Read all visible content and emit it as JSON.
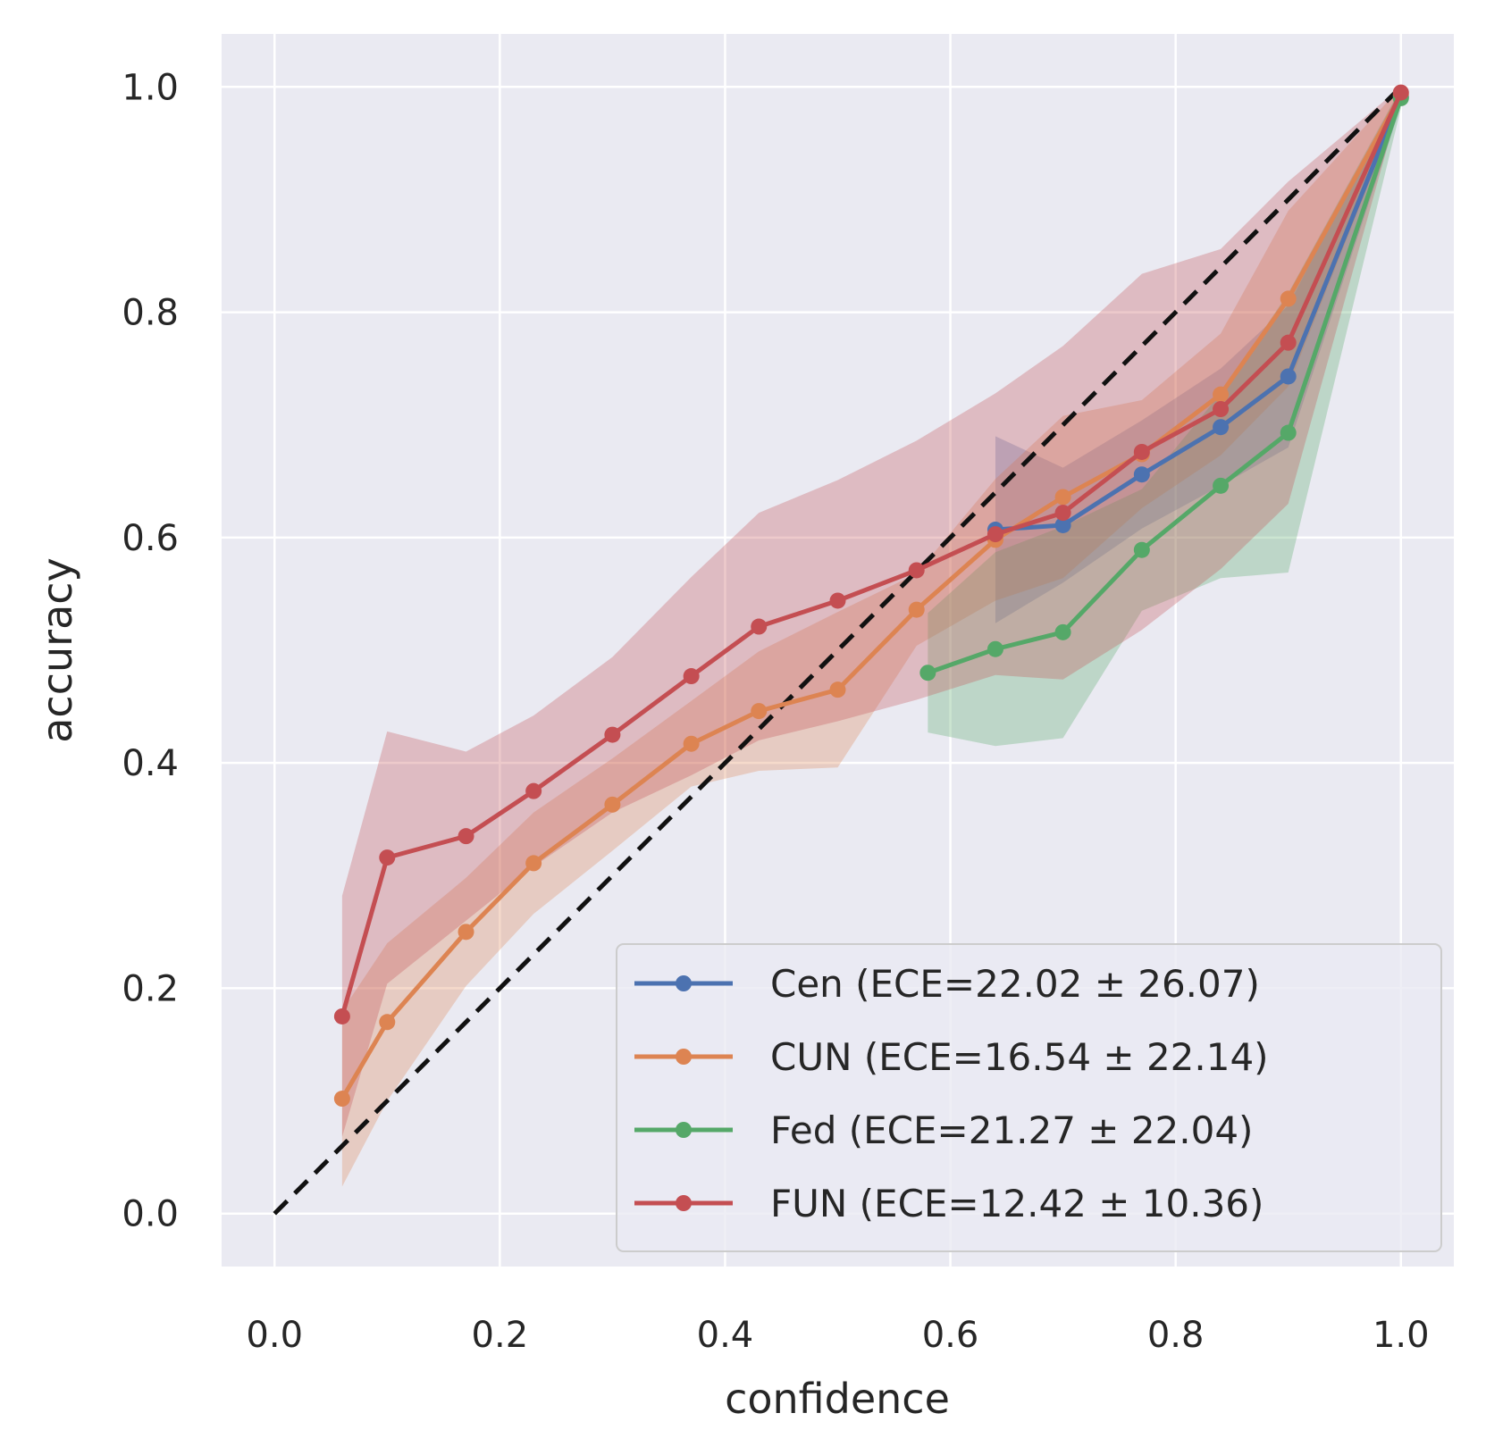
{
  "chart_data": {
    "type": "line",
    "xlabel": "confidence",
    "ylabel": "accuracy",
    "xlim": [
      -0.047,
      1.047
    ],
    "ylim": [
      -0.047,
      1.047
    ],
    "xticks": [
      "0.0",
      "0.2",
      "0.4",
      "0.6",
      "0.8",
      "1.0"
    ],
    "yticks": [
      "0.0",
      "0.2",
      "0.4",
      "0.6",
      "0.8",
      "1.0"
    ],
    "grid": true,
    "legend_position": "lower-right",
    "reference_line": {
      "from": [
        0,
        0
      ],
      "to": [
        1,
        1
      ],
      "style": "dashed",
      "color": "#111111"
    },
    "series": [
      {
        "name": "Cen (ECE=22.02 ± 26.07)",
        "color": "#4c72b0",
        "x": [
          0.64,
          0.7,
          0.77,
          0.84,
          0.9,
          1.0
        ],
        "y": [
          0.607,
          0.611,
          0.656,
          0.698,
          0.743,
          0.991
        ],
        "upper": [
          0.69,
          0.662,
          0.704,
          0.75,
          0.806,
          0.999
        ],
        "lower": [
          0.524,
          0.56,
          0.608,
          0.646,
          0.68,
          0.983
        ]
      },
      {
        "name": "CUN (ECE=16.54 ± 22.14)",
        "color": "#dd8452",
        "x": [
          0.06,
          0.1,
          0.17,
          0.23,
          0.3,
          0.37,
          0.43,
          0.5,
          0.57,
          0.64,
          0.7,
          0.77,
          0.84,
          0.9,
          1.0
        ],
        "y": [
          0.102,
          0.17,
          0.25,
          0.311,
          0.363,
          0.417,
          0.446,
          0.465,
          0.536,
          0.598,
          0.636,
          0.674,
          0.727,
          0.812,
          0.993
        ],
        "upper": [
          0.18,
          0.24,
          0.298,
          0.356,
          0.404,
          0.455,
          0.499,
          0.534,
          0.568,
          0.652,
          0.708,
          0.722,
          0.781,
          0.89,
          1.0
        ],
        "lower": [
          0.024,
          0.1,
          0.202,
          0.266,
          0.322,
          0.379,
          0.393,
          0.396,
          0.504,
          0.544,
          0.564,
          0.626,
          0.673,
          0.734,
          0.986
        ]
      },
      {
        "name": "Fed (ECE=21.27 ± 22.04)",
        "color": "#55a868",
        "x": [
          0.58,
          0.64,
          0.7,
          0.77,
          0.84,
          0.9,
          1.0
        ],
        "y": [
          0.48,
          0.501,
          0.516,
          0.589,
          0.646,
          0.693,
          0.99
        ],
        "upper": [
          0.533,
          0.587,
          0.61,
          0.643,
          0.728,
          0.817,
          0.999
        ],
        "lower": [
          0.427,
          0.415,
          0.422,
          0.535,
          0.564,
          0.569,
          0.981
        ]
      },
      {
        "name": "FUN (ECE=12.42 ± 10.36)",
        "color": "#c44e52",
        "x": [
          0.06,
          0.1,
          0.17,
          0.23,
          0.3,
          0.37,
          0.43,
          0.5,
          0.57,
          0.64,
          0.7,
          0.77,
          0.84,
          0.9,
          1.0
        ],
        "y": [
          0.175,
          0.316,
          0.335,
          0.375,
          0.425,
          0.477,
          0.521,
          0.544,
          0.571,
          0.603,
          0.622,
          0.676,
          0.714,
          0.773,
          0.995
        ],
        "upper": [
          0.282,
          0.428,
          0.41,
          0.442,
          0.494,
          0.565,
          0.622,
          0.651,
          0.686,
          0.728,
          0.77,
          0.834,
          0.856,
          0.916,
          1.0
        ],
        "lower": [
          0.068,
          0.204,
          0.26,
          0.308,
          0.356,
          0.389,
          0.42,
          0.437,
          0.456,
          0.478,
          0.474,
          0.518,
          0.572,
          0.63,
          0.99
        ]
      }
    ]
  }
}
